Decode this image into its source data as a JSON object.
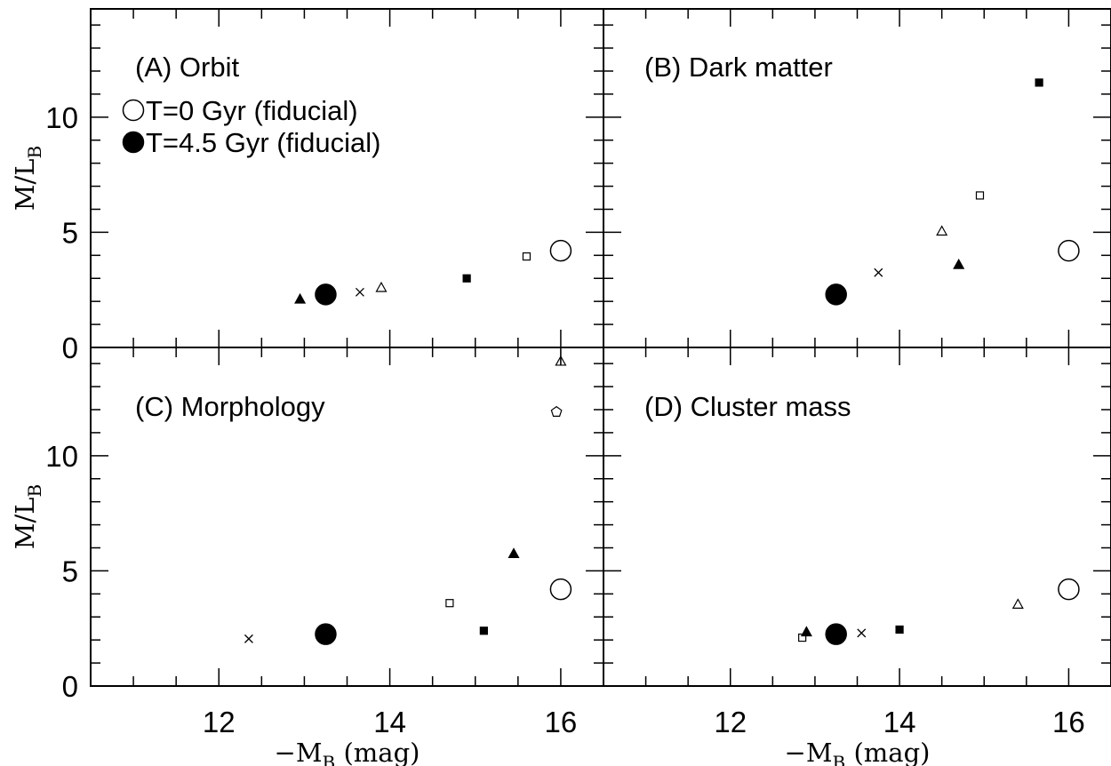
{
  "chart_data": [
    {
      "panel": "A",
      "type": "scatter",
      "title": "(A) Orbit",
      "xlabel": "−M_B (mag)",
      "ylabel": "M/L_B",
      "xlim": [
        10.5,
        16.5
      ],
      "ylim": [
        0,
        14.7
      ],
      "xticks": [
        12,
        14,
        16
      ],
      "yticks": [
        0,
        5,
        10
      ],
      "legend": [
        {
          "marker": "open-circle-large",
          "label": "T=0 Gyr (fiducial)"
        },
        {
          "marker": "filled-circle-large",
          "label": "T=4.5 Gyr (fiducial)"
        }
      ],
      "points": [
        {
          "x": 16.0,
          "y": 4.2,
          "marker": "open-circle-large"
        },
        {
          "x": 13.25,
          "y": 2.3,
          "marker": "filled-circle-large"
        },
        {
          "x": 12.95,
          "y": 2.1,
          "marker": "filled-triangle"
        },
        {
          "x": 13.65,
          "y": 2.4,
          "marker": "cross"
        },
        {
          "x": 13.9,
          "y": 2.6,
          "marker": "open-triangle"
        },
        {
          "x": 14.9,
          "y": 3.0,
          "marker": "filled-square"
        },
        {
          "x": 15.6,
          "y": 3.95,
          "marker": "open-square"
        }
      ]
    },
    {
      "panel": "B",
      "type": "scatter",
      "title": "(B) Dark matter",
      "xlabel": "−M_B (mag)",
      "ylabel": "M/L_B",
      "xlim": [
        10.5,
        16.5
      ],
      "ylim": [
        0,
        14.7
      ],
      "xticks": [
        12,
        14,
        16
      ],
      "yticks": [
        0,
        5,
        10
      ],
      "points": [
        {
          "x": 16.0,
          "y": 4.2,
          "marker": "open-circle-large"
        },
        {
          "x": 13.25,
          "y": 2.3,
          "marker": "filled-circle-large"
        },
        {
          "x": 13.75,
          "y": 3.25,
          "marker": "cross"
        },
        {
          "x": 14.5,
          "y": 5.05,
          "marker": "open-triangle"
        },
        {
          "x": 14.7,
          "y": 3.6,
          "marker": "filled-triangle"
        },
        {
          "x": 14.95,
          "y": 6.6,
          "marker": "open-square"
        },
        {
          "x": 15.65,
          "y": 11.5,
          "marker": "filled-square"
        }
      ]
    },
    {
      "panel": "C",
      "type": "scatter",
      "title": "(C) Morphology",
      "xlabel": "−M_B (mag)",
      "ylabel": "M/L_B",
      "xlim": [
        10.5,
        16.5
      ],
      "ylim": [
        0,
        14.7
      ],
      "xticks": [
        12,
        14,
        16
      ],
      "yticks": [
        0,
        5,
        10
      ],
      "points": [
        {
          "x": 16.0,
          "y": 4.2,
          "marker": "open-circle-large"
        },
        {
          "x": 13.25,
          "y": 2.25,
          "marker": "filled-circle-large"
        },
        {
          "x": 12.35,
          "y": 2.05,
          "marker": "cross"
        },
        {
          "x": 14.7,
          "y": 3.6,
          "marker": "open-square"
        },
        {
          "x": 15.1,
          "y": 2.4,
          "marker": "filled-square"
        },
        {
          "x": 15.45,
          "y": 5.75,
          "marker": "filled-triangle"
        },
        {
          "x": 15.95,
          "y": 11.9,
          "marker": "open-pentagon"
        },
        {
          "x": 16.0,
          "y": 14.1,
          "marker": "open-triangle-with-arrow"
        }
      ]
    },
    {
      "panel": "D",
      "type": "scatter",
      "title": "(D) Cluster mass",
      "xlabel": "−M_B (mag)",
      "ylabel": "M/L_B",
      "xlim": [
        10.5,
        16.5
      ],
      "ylim": [
        0,
        14.7
      ],
      "xticks": [
        12,
        14,
        16
      ],
      "yticks": [
        0,
        5,
        10
      ],
      "points": [
        {
          "x": 16.0,
          "y": 4.2,
          "marker": "open-circle-large"
        },
        {
          "x": 13.25,
          "y": 2.25,
          "marker": "filled-circle-large"
        },
        {
          "x": 12.85,
          "y": 2.1,
          "marker": "open-square"
        },
        {
          "x": 12.9,
          "y": 2.35,
          "marker": "filled-triangle"
        },
        {
          "x": 13.55,
          "y": 2.3,
          "marker": "cross"
        },
        {
          "x": 14.0,
          "y": 2.45,
          "marker": "filled-square"
        },
        {
          "x": 15.4,
          "y": 3.55,
          "marker": "open-triangle"
        }
      ]
    }
  ],
  "colors": {
    "ink": "#000000",
    "background": "#ffffff"
  }
}
